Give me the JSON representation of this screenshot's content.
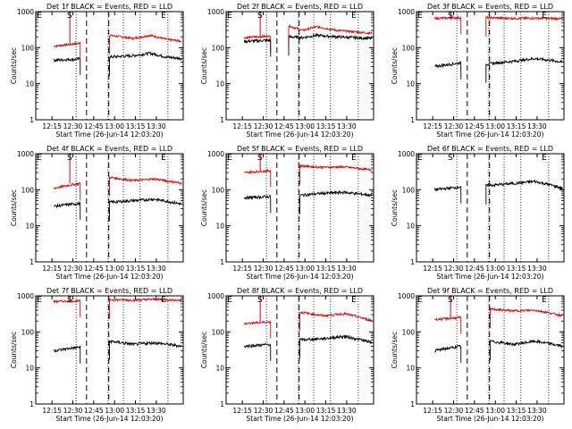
{
  "common": {
    "xlabel": "Start Time (26-Jun-14 12:03:20)",
    "ylabel": "Counts/sec",
    "xtick_labels": [
      "12:15",
      "12:30",
      "12:45",
      "13:00",
      "13:15",
      "13:30"
    ],
    "ytick_labels": [
      "1",
      "10",
      "100",
      "1000"
    ],
    "marker_labels": {
      "E": "E",
      "S": "S"
    },
    "colors": {
      "events": "#000000",
      "lld": "#dd0000"
    }
  },
  "chart_data": [
    {
      "type": "line",
      "title": "Det 1f BLACK = Events, RED = LLD",
      "ylim": [
        1,
        1000
      ],
      "xrange_minutes": [
        12.5,
        105
      ],
      "yscale": "log",
      "events": [
        {
          "x": [
            13,
            30,
            32
          ],
          "y": [
            45,
            48,
            50
          ]
        },
        {
          "x": [
            53,
            70,
            82,
            94,
            105
          ],
          "y": [
            55,
            60,
            70,
            55,
            50
          ]
        }
      ],
      "lld": [
        {
          "x": [
            13,
            30,
            32
          ],
          "y": [
            110,
            130,
            140
          ]
        },
        {
          "x": [
            53,
            70,
            82,
            94,
            105
          ],
          "y": [
            220,
            180,
            220,
            170,
            150
          ]
        }
      ]
    },
    {
      "type": "line",
      "title": "Det 2f BLACK = Events, RED = LLD",
      "ylim": [
        1,
        1000
      ],
      "xrange_minutes": [
        12.5,
        105
      ],
      "yscale": "log",
      "events": [
        {
          "x": [
            13,
            32
          ],
          "y": [
            150,
            160
          ]
        },
        {
          "x": [
            45,
            55,
            65,
            80,
            105
          ],
          "y": [
            200,
            190,
            220,
            200,
            180
          ]
        }
      ],
      "lld": [
        {
          "x": [
            13,
            32
          ],
          "y": [
            190,
            210
          ]
        },
        {
          "x": [
            45,
            55,
            65,
            80,
            105
          ],
          "y": [
            400,
            300,
            380,
            300,
            250
          ]
        }
      ]
    },
    {
      "type": "line",
      "title": "Det 3f BLACK = Events, RED = LLD",
      "ylim": [
        1,
        1000
      ],
      "xrange_minutes": [
        12.5,
        105
      ],
      "yscale": "log",
      "events": [
        {
          "x": [
            13,
            32
          ],
          "y": [
            30,
            38
          ]
        },
        {
          "x": [
            50,
            70,
            85,
            105
          ],
          "y": [
            35,
            42,
            50,
            40
          ]
        }
      ],
      "lld": [
        {
          "x": [
            13,
            32
          ],
          "y": [
            650,
            680
          ]
        },
        {
          "x": [
            50,
            70,
            85,
            105
          ],
          "y": [
            680,
            650,
            660,
            640
          ]
        }
      ]
    },
    {
      "type": "line",
      "title": "Det 4f BLACK = Events, RED = LLD",
      "ylim": [
        1,
        1000
      ],
      "xrange_minutes": [
        12.5,
        105
      ],
      "yscale": "log",
      "events": [
        {
          "x": [
            13,
            32
          ],
          "y": [
            35,
            42
          ]
        },
        {
          "x": [
            53,
            70,
            85,
            105
          ],
          "y": [
            45,
            50,
            55,
            40
          ]
        }
      ],
      "lld": [
        {
          "x": [
            13,
            32
          ],
          "y": [
            110,
            150
          ]
        },
        {
          "x": [
            53,
            70,
            85,
            105
          ],
          "y": [
            220,
            180,
            200,
            150
          ]
        }
      ]
    },
    {
      "type": "line",
      "title": "Det 5f BLACK = Events, RED = LLD",
      "ylim": [
        1,
        1000
      ],
      "xrange_minutes": [
        12.5,
        105
      ],
      "yscale": "log",
      "events": [
        {
          "x": [
            13,
            32
          ],
          "y": [
            60,
            65
          ]
        },
        {
          "x": [
            53,
            70,
            85,
            105
          ],
          "y": [
            70,
            80,
            85,
            70
          ]
        }
      ],
      "lld": [
        {
          "x": [
            13,
            32
          ],
          "y": [
            300,
            340
          ]
        },
        {
          "x": [
            53,
            70,
            85,
            105
          ],
          "y": [
            460,
            420,
            430,
            350
          ]
        }
      ]
    },
    {
      "type": "line",
      "title": "Det 6f BLACK = Events, RED = LLD",
      "ylim": [
        1,
        1000
      ],
      "xrange_minutes": [
        12.5,
        105
      ],
      "yscale": "log",
      "events": [
        {
          "x": [
            13,
            32
          ],
          "y": [
            100,
            120
          ]
        },
        {
          "x": [
            50,
            70,
            85,
            105
          ],
          "y": [
            130,
            150,
            170,
            110
          ]
        }
      ],
      "lld": []
    },
    {
      "type": "line",
      "title": "Det 7f BLACK = Events, RED = LLD",
      "ylim": [
        1,
        1000
      ],
      "xrange_minutes": [
        12.5,
        105
      ],
      "yscale": "log",
      "events": [
        {
          "x": [
            13,
            32
          ],
          "y": [
            30,
            38
          ]
        },
        {
          "x": [
            53,
            70,
            85,
            105
          ],
          "y": [
            55,
            45,
            50,
            40
          ]
        }
      ],
      "lld": [
        {
          "x": [
            13,
            32
          ],
          "y": [
            700,
            720
          ]
        },
        {
          "x": [
            53,
            70,
            85,
            105
          ],
          "y": [
            780,
            760,
            800,
            750
          ]
        }
      ]
    },
    {
      "type": "line",
      "title": "Det 8f BLACK = Events, RED = LLD",
      "ylim": [
        1,
        1000
      ],
      "xrange_minutes": [
        12.5,
        105
      ],
      "yscale": "log",
      "events": [
        {
          "x": [
            13,
            32
          ],
          "y": [
            40,
            45
          ]
        },
        {
          "x": [
            53,
            70,
            85,
            105
          ],
          "y": [
            60,
            65,
            75,
            50
          ]
        }
      ],
      "lld": [
        {
          "x": [
            13,
            32
          ],
          "y": [
            170,
            190
          ]
        },
        {
          "x": [
            53,
            70,
            85,
            105
          ],
          "y": [
            350,
            280,
            320,
            200
          ]
        }
      ]
    },
    {
      "type": "line",
      "title": "Det 9f BLACK = Events, RED = LLD",
      "ylim": [
        1,
        1000
      ],
      "xrange_minutes": [
        12.5,
        105
      ],
      "yscale": "log",
      "events": [
        {
          "x": [
            13,
            32
          ],
          "y": [
            30,
            40
          ]
        },
        {
          "x": [
            53,
            70,
            85,
            105
          ],
          "y": [
            55,
            45,
            55,
            40
          ]
        }
      ],
      "lld": [
        {
          "x": [
            13,
            32
          ],
          "y": [
            220,
            250
          ]
        },
        {
          "x": [
            53,
            70,
            85,
            105
          ],
          "y": [
            430,
            380,
            400,
            280
          ]
        }
      ]
    }
  ]
}
